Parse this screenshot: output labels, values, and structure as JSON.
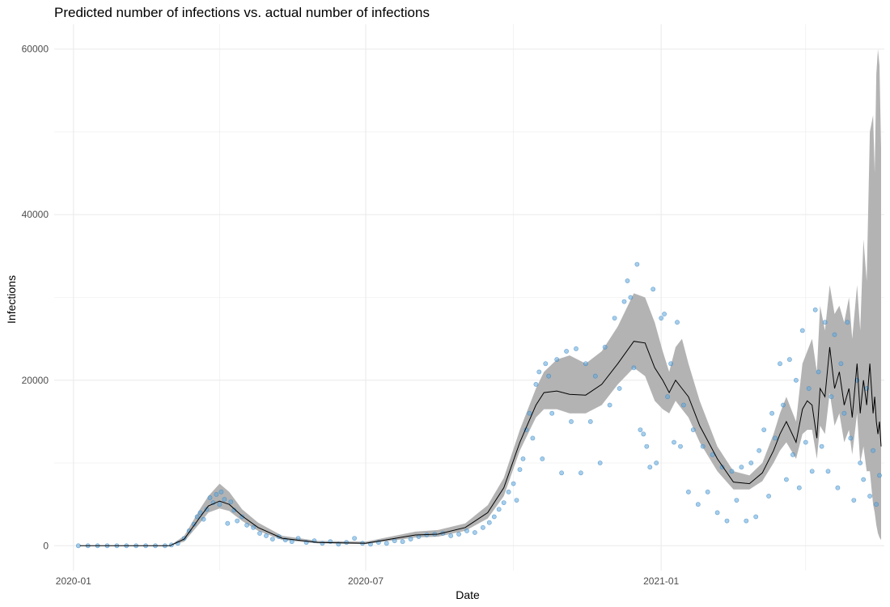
{
  "chart_data": {
    "type": "line",
    "title": "Predicted number of infections vs. actual number of infections",
    "xlabel": "Date",
    "ylabel": "Infections",
    "x_range": [
      "2019-12-20",
      "2021-05-20"
    ],
    "ylim": [
      -3000,
      63000
    ],
    "x_tick_labels": [
      {
        "date": "2020-01-01",
        "label": "2020-01"
      },
      {
        "date": "2020-07-01",
        "label": "2020-07"
      },
      {
        "date": "2021-01-01",
        "label": "2021-01"
      }
    ],
    "x_minor_dates": [
      "2020-04-01",
      "2020-10-01",
      "2021-04-01"
    ],
    "y_ticks": [
      0,
      20000,
      40000,
      60000
    ],
    "y_minor": [
      10000,
      30000,
      50000
    ],
    "grid": true,
    "legend": "none",
    "colors": {
      "points": "#5da5da",
      "point_stroke": "#3b84c0",
      "ribbon": "#b3b3b3",
      "line": "#000000",
      "grid": "#ebebeb"
    },
    "series": [
      {
        "kind": "prediction",
        "dates": [
          "2020-01-05",
          "2020-02-01",
          "2020-03-01",
          "2020-03-10",
          "2020-03-20",
          "2020-03-25",
          "2020-04-01",
          "2020-04-07",
          "2020-04-15",
          "2020-04-25",
          "2020-05-10",
          "2020-06-01",
          "2020-07-01",
          "2020-08-01",
          "2020-08-15",
          "2020-09-01",
          "2020-09-15",
          "2020-09-25",
          "2020-10-05",
          "2020-10-15",
          "2020-10-20",
          "2020-10-28",
          "2020-11-05",
          "2020-11-15",
          "2020-11-25",
          "2020-12-05",
          "2020-12-15",
          "2020-12-22",
          "2020-12-28",
          "2021-01-02",
          "2021-01-06",
          "2021-01-10",
          "2021-01-14",
          "2021-01-18",
          "2021-01-25",
          "2021-02-05",
          "2021-02-15",
          "2021-02-25",
          "2021-03-05",
          "2021-03-12",
          "2021-03-16",
          "2021-03-20",
          "2021-03-26",
          "2021-03-30",
          "2021-04-02",
          "2021-04-05",
          "2021-04-08",
          "2021-04-10",
          "2021-04-13",
          "2021-04-16",
          "2021-04-19",
          "2021-04-22",
          "2021-04-25",
          "2021-04-28",
          "2021-04-30",
          "2021-05-03",
          "2021-05-05",
          "2021-05-07",
          "2021-05-09",
          "2021-05-11",
          "2021-05-13",
          "2021-05-14",
          "2021-05-15",
          "2021-05-16",
          "2021-05-17",
          "2021-05-18"
        ],
        "fit": [
          0,
          0,
          0,
          800,
          3500,
          4800,
          5400,
          5000,
          3600,
          2200,
          900,
          400,
          300,
          1300,
          1400,
          2200,
          4000,
          7000,
          12500,
          17000,
          18500,
          18700,
          18300,
          18200,
          19500,
          22000,
          24700,
          24500,
          21500,
          20000,
          18500,
          20000,
          19000,
          18000,
          14500,
          10500,
          7700,
          7500,
          8800,
          11500,
          13500,
          15000,
          12500,
          16500,
          17500,
          17000,
          13000,
          19000,
          18000,
          24000,
          19000,
          21000,
          17000,
          19000,
          15500,
          22000,
          16000,
          20000,
          17000,
          22000,
          16000,
          18000,
          15000,
          13500,
          15000,
          12000
        ],
        "lower": [
          0,
          0,
          0,
          500,
          2800,
          4000,
          4500,
          4200,
          3000,
          1800,
          700,
          300,
          200,
          1000,
          1100,
          1800,
          3300,
          6000,
          11500,
          15500,
          16500,
          16500,
          16000,
          16000,
          17000,
          19500,
          21500,
          20500,
          17500,
          16500,
          16000,
          17500,
          16500,
          15500,
          12500,
          9000,
          6800,
          6800,
          7800,
          10000,
          11500,
          12500,
          10500,
          13500,
          14000,
          14000,
          10500,
          14500,
          13500,
          18500,
          14500,
          16000,
          12500,
          14000,
          11000,
          16000,
          10000,
          12000,
          9000,
          9000,
          5000,
          4000,
          2500,
          1500,
          1000,
          700
        ],
        "upper": [
          0,
          0,
          0,
          1200,
          4500,
          6000,
          7500,
          6500,
          4400,
          2800,
          1200,
          600,
          500,
          1700,
          1900,
          2700,
          4900,
          8200,
          14000,
          19000,
          21000,
          22500,
          23000,
          22000,
          23500,
          26500,
          30500,
          30000,
          27000,
          23500,
          21000,
          24000,
          25000,
          22000,
          17500,
          12000,
          9000,
          8500,
          10000,
          13500,
          16000,
          18000,
          15000,
          22000,
          23500,
          25000,
          21000,
          29000,
          26000,
          31500,
          28000,
          29000,
          27000,
          30000,
          25000,
          31500,
          26000,
          37000,
          32000,
          50000,
          52000,
          45000,
          57000,
          60000,
          58000,
          48000
        ]
      }
    ],
    "points": [
      {
        "x": "2020-01-04",
        "y": 0
      },
      {
        "x": "2020-01-10",
        "y": 0
      },
      {
        "x": "2020-01-16",
        "y": 0
      },
      {
        "x": "2020-01-22",
        "y": 0
      },
      {
        "x": "2020-01-28",
        "y": 0
      },
      {
        "x": "2020-02-03",
        "y": 0
      },
      {
        "x": "2020-02-09",
        "y": 0
      },
      {
        "x": "2020-02-15",
        "y": 0
      },
      {
        "x": "2020-02-21",
        "y": 0
      },
      {
        "x": "2020-02-27",
        "y": 0
      },
      {
        "x": "2020-03-02",
        "y": 100
      },
      {
        "x": "2020-03-06",
        "y": 300
      },
      {
        "x": "2020-03-10",
        "y": 900
      },
      {
        "x": "2020-03-13",
        "y": 1800
      },
      {
        "x": "2020-03-16",
        "y": 2600
      },
      {
        "x": "2020-03-18",
        "y": 3500
      },
      {
        "x": "2020-03-20",
        "y": 4000
      },
      {
        "x": "2020-03-22",
        "y": 3200
      },
      {
        "x": "2020-03-24",
        "y": 4400
      },
      {
        "x": "2020-03-26",
        "y": 5800
      },
      {
        "x": "2020-03-28",
        "y": 5200
      },
      {
        "x": "2020-03-30",
        "y": 6200
      },
      {
        "x": "2020-04-01",
        "y": 5000
      },
      {
        "x": "2020-04-02",
        "y": 6500
      },
      {
        "x": "2020-04-04",
        "y": 5600
      },
      {
        "x": "2020-04-06",
        "y": 2700
      },
      {
        "x": "2020-04-08",
        "y": 5300
      },
      {
        "x": "2020-04-10",
        "y": 4300
      },
      {
        "x": "2020-04-12",
        "y": 3000
      },
      {
        "x": "2020-04-15",
        "y": 3500
      },
      {
        "x": "2020-04-18",
        "y": 2500
      },
      {
        "x": "2020-04-22",
        "y": 2200
      },
      {
        "x": "2020-04-26",
        "y": 1500
      },
      {
        "x": "2020-04-30",
        "y": 1200
      },
      {
        "x": "2020-05-04",
        "y": 800
      },
      {
        "x": "2020-05-08",
        "y": 1100
      },
      {
        "x": "2020-05-12",
        "y": 700
      },
      {
        "x": "2020-05-16",
        "y": 500
      },
      {
        "x": "2020-05-20",
        "y": 900
      },
      {
        "x": "2020-05-25",
        "y": 400
      },
      {
        "x": "2020-05-30",
        "y": 600
      },
      {
        "x": "2020-06-04",
        "y": 300
      },
      {
        "x": "2020-06-09",
        "y": 500
      },
      {
        "x": "2020-06-14",
        "y": 200
      },
      {
        "x": "2020-06-19",
        "y": 400
      },
      {
        "x": "2020-06-24",
        "y": 900
      },
      {
        "x": "2020-06-29",
        "y": 300
      },
      {
        "x": "2020-07-04",
        "y": 200
      },
      {
        "x": "2020-07-09",
        "y": 400
      },
      {
        "x": "2020-07-14",
        "y": 300
      },
      {
        "x": "2020-07-19",
        "y": 600
      },
      {
        "x": "2020-07-24",
        "y": 500
      },
      {
        "x": "2020-07-29",
        "y": 800
      },
      {
        "x": "2020-08-03",
        "y": 1100
      },
      {
        "x": "2020-08-08",
        "y": 1300
      },
      {
        "x": "2020-08-13",
        "y": 1400
      },
      {
        "x": "2020-08-18",
        "y": 1500
      },
      {
        "x": "2020-08-23",
        "y": 1200
      },
      {
        "x": "2020-08-28",
        "y": 1400
      },
      {
        "x": "2020-09-02",
        "y": 1800
      },
      {
        "x": "2020-09-07",
        "y": 1600
      },
      {
        "x": "2020-09-12",
        "y": 2200
      },
      {
        "x": "2020-09-16",
        "y": 2800
      },
      {
        "x": "2020-09-19",
        "y": 3500
      },
      {
        "x": "2020-09-22",
        "y": 4400
      },
      {
        "x": "2020-09-25",
        "y": 5200
      },
      {
        "x": "2020-09-28",
        "y": 6500
      },
      {
        "x": "2020-10-01",
        "y": 7500
      },
      {
        "x": "2020-10-03",
        "y": 5500
      },
      {
        "x": "2020-10-05",
        "y": 9200
      },
      {
        "x": "2020-10-07",
        "y": 10500
      },
      {
        "x": "2020-10-09",
        "y": 14000
      },
      {
        "x": "2020-10-11",
        "y": 16000
      },
      {
        "x": "2020-10-13",
        "y": 13000
      },
      {
        "x": "2020-10-15",
        "y": 19500
      },
      {
        "x": "2020-10-17",
        "y": 21000
      },
      {
        "x": "2020-10-19",
        "y": 10500
      },
      {
        "x": "2020-10-21",
        "y": 22000
      },
      {
        "x": "2020-10-23",
        "y": 20500
      },
      {
        "x": "2020-10-25",
        "y": 16000
      },
      {
        "x": "2020-10-28",
        "y": 22500
      },
      {
        "x": "2020-10-31",
        "y": 8800
      },
      {
        "x": "2020-11-03",
        "y": 23500
      },
      {
        "x": "2020-11-06",
        "y": 15000
      },
      {
        "x": "2020-11-09",
        "y": 23800
      },
      {
        "x": "2020-11-12",
        "y": 8800
      },
      {
        "x": "2020-11-15",
        "y": 22000
      },
      {
        "x": "2020-11-18",
        "y": 15000
      },
      {
        "x": "2020-11-21",
        "y": 20500
      },
      {
        "x": "2020-11-24",
        "y": 10000
      },
      {
        "x": "2020-11-27",
        "y": 24000
      },
      {
        "x": "2020-11-30",
        "y": 17000
      },
      {
        "x": "2020-12-03",
        "y": 27500
      },
      {
        "x": "2020-12-06",
        "y": 19000
      },
      {
        "x": "2020-12-09",
        "y": 29500
      },
      {
        "x": "2020-12-11",
        "y": 32000
      },
      {
        "x": "2020-12-13",
        "y": 30000
      },
      {
        "x": "2020-12-15",
        "y": 21500
      },
      {
        "x": "2020-12-17",
        "y": 34000
      },
      {
        "x": "2020-12-19",
        "y": 14000
      },
      {
        "x": "2020-12-21",
        "y": 13500
      },
      {
        "x": "2020-12-23",
        "y": 12000
      },
      {
        "x": "2020-12-25",
        "y": 9500
      },
      {
        "x": "2020-12-27",
        "y": 31000
      },
      {
        "x": "2020-12-29",
        "y": 10000
      },
      {
        "x": "2021-01-01",
        "y": 27500
      },
      {
        "x": "2021-01-03",
        "y": 28000
      },
      {
        "x": "2021-01-05",
        "y": 18000
      },
      {
        "x": "2021-01-07",
        "y": 22000
      },
      {
        "x": "2021-01-09",
        "y": 12500
      },
      {
        "x": "2021-01-11",
        "y": 27000
      },
      {
        "x": "2021-01-13",
        "y": 12000
      },
      {
        "x": "2021-01-15",
        "y": 17000
      },
      {
        "x": "2021-01-18",
        "y": 6500
      },
      {
        "x": "2021-01-21",
        "y": 14000
      },
      {
        "x": "2021-01-24",
        "y": 5000
      },
      {
        "x": "2021-01-27",
        "y": 12000
      },
      {
        "x": "2021-01-30",
        "y": 6500
      },
      {
        "x": "2021-02-02",
        "y": 11000
      },
      {
        "x": "2021-02-05",
        "y": 4000
      },
      {
        "x": "2021-02-08",
        "y": 9500
      },
      {
        "x": "2021-02-11",
        "y": 3000
      },
      {
        "x": "2021-02-14",
        "y": 9000
      },
      {
        "x": "2021-02-17",
        "y": 5500
      },
      {
        "x": "2021-02-20",
        "y": 9500
      },
      {
        "x": "2021-02-23",
        "y": 3000
      },
      {
        "x": "2021-02-26",
        "y": 10000
      },
      {
        "x": "2021-03-01",
        "y": 3500
      },
      {
        "x": "2021-03-03",
        "y": 11500
      },
      {
        "x": "2021-03-06",
        "y": 14000
      },
      {
        "x": "2021-03-09",
        "y": 6000
      },
      {
        "x": "2021-03-11",
        "y": 16000
      },
      {
        "x": "2021-03-13",
        "y": 13000
      },
      {
        "x": "2021-03-16",
        "y": 22000
      },
      {
        "x": "2021-03-18",
        "y": 17000
      },
      {
        "x": "2021-03-20",
        "y": 8000
      },
      {
        "x": "2021-03-22",
        "y": 22500
      },
      {
        "x": "2021-03-24",
        "y": 11000
      },
      {
        "x": "2021-03-26",
        "y": 20000
      },
      {
        "x": "2021-03-28",
        "y": 7000
      },
      {
        "x": "2021-03-30",
        "y": 26000
      },
      {
        "x": "2021-04-01",
        "y": 12500
      },
      {
        "x": "2021-04-03",
        "y": 19000
      },
      {
        "x": "2021-04-05",
        "y": 9000
      },
      {
        "x": "2021-04-07",
        "y": 28500
      },
      {
        "x": "2021-04-09",
        "y": 21000
      },
      {
        "x": "2021-04-11",
        "y": 12000
      },
      {
        "x": "2021-04-13",
        "y": 27000
      },
      {
        "x": "2021-04-15",
        "y": 9000
      },
      {
        "x": "2021-04-17",
        "y": 18000
      },
      {
        "x": "2021-04-19",
        "y": 25500
      },
      {
        "x": "2021-04-21",
        "y": 7000
      },
      {
        "x": "2021-04-23",
        "y": 22000
      },
      {
        "x": "2021-04-25",
        "y": 16000
      },
      {
        "x": "2021-04-27",
        "y": 27000
      },
      {
        "x": "2021-04-29",
        "y": 13000
      },
      {
        "x": "2021-05-01",
        "y": 5500
      },
      {
        "x": "2021-05-03",
        "y": 20000
      },
      {
        "x": "2021-05-05",
        "y": 10000
      },
      {
        "x": "2021-05-07",
        "y": 8000
      },
      {
        "x": "2021-05-09",
        "y": 19000
      },
      {
        "x": "2021-05-11",
        "y": 6000
      },
      {
        "x": "2021-05-13",
        "y": 11500
      },
      {
        "x": "2021-05-15",
        "y": 5000
      },
      {
        "x": "2021-05-17",
        "y": 8500
      }
    ]
  }
}
